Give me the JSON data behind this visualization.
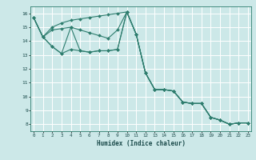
{
  "xlabel": "Humidex (Indice chaleur)",
  "bg_color": "#cce8e8",
  "grid_color": "#b0d4d4",
  "line_color": "#2e7d6e",
  "series": [
    {
      "x": [
        0,
        1,
        2,
        3,
        4,
        5,
        6,
        7,
        8,
        9,
        10,
        11,
        12,
        13,
        14,
        15,
        16,
        17,
        18,
        19,
        20,
        21,
        22,
        23
      ],
      "y": [
        15.7,
        14.3,
        15.0,
        15.3,
        15.5,
        15.6,
        15.7,
        15.8,
        15.9,
        16.0,
        16.1,
        14.5,
        11.7,
        10.5,
        10.5,
        10.4,
        9.6,
        9.5,
        9.5,
        8.5,
        8.3,
        8.0,
        8.1,
        8.1
      ]
    },
    {
      "x": [
        0,
        1,
        2,
        3,
        4,
        5,
        6,
        7,
        8,
        9,
        10,
        11,
        12,
        13,
        14,
        15,
        16,
        17,
        18,
        19,
        20,
        21,
        22,
        23
      ],
      "y": [
        15.7,
        14.3,
        14.8,
        14.9,
        15.0,
        14.8,
        14.6,
        14.4,
        14.2,
        14.8,
        16.1,
        14.5,
        11.7,
        10.5,
        10.5,
        10.4,
        9.6,
        9.5,
        9.5,
        8.5,
        8.3,
        8.0,
        8.1,
        8.1
      ]
    },
    {
      "x": [
        0,
        1,
        2,
        3,
        4,
        5,
        6,
        7,
        8,
        9,
        10,
        11,
        12,
        13,
        14,
        15,
        16,
        17,
        18,
        19,
        20,
        21,
        22,
        23
      ],
      "y": [
        15.7,
        14.3,
        13.6,
        13.1,
        13.4,
        13.3,
        13.2,
        13.3,
        13.3,
        13.4,
        16.1,
        14.5,
        11.7,
        10.5,
        10.5,
        10.4,
        9.6,
        9.5,
        9.5,
        8.5,
        8.3,
        8.0,
        8.1,
        8.1
      ]
    },
    {
      "x": [
        0,
        1,
        2,
        3,
        4,
        5,
        6,
        7,
        8,
        9,
        10,
        11,
        12,
        13,
        14,
        15,
        16,
        17,
        18,
        19,
        20,
        21,
        22,
        23
      ],
      "y": [
        15.7,
        14.3,
        13.6,
        13.1,
        15.0,
        13.3,
        13.2,
        13.3,
        13.3,
        13.4,
        16.1,
        14.5,
        11.7,
        10.5,
        10.5,
        10.4,
        9.6,
        9.5,
        9.5,
        8.5,
        8.3,
        8.0,
        8.1,
        8.1
      ]
    }
  ],
  "ylim": [
    7.5,
    16.5
  ],
  "xlim": [
    -0.3,
    23.3
  ],
  "yticks": [
    8,
    9,
    10,
    11,
    12,
    13,
    14,
    15,
    16
  ],
  "xticks": [
    0,
    1,
    2,
    3,
    4,
    5,
    6,
    7,
    8,
    9,
    10,
    11,
    12,
    13,
    14,
    15,
    16,
    17,
    18,
    19,
    20,
    21,
    22,
    23
  ]
}
